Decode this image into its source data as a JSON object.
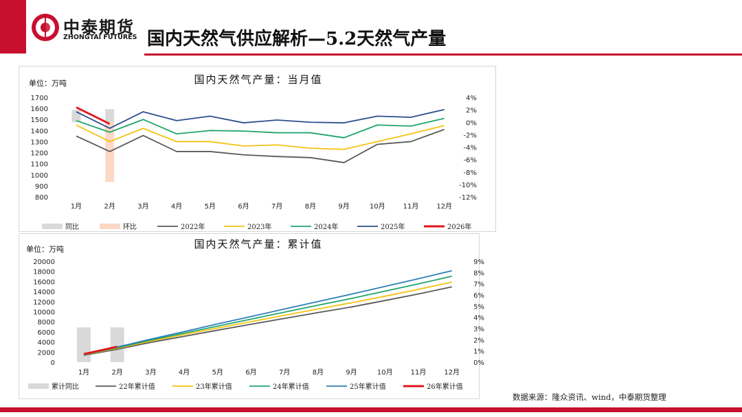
{
  "header": {
    "brand_cn": "中泰期货",
    "brand_en": "ZHONGTAI FUTURES",
    "title": "国内天然气供应解析—5.2天然气产量"
  },
  "colors": {
    "accent": "#c8102e"
  },
  "source": "数据来源：隆众资讯、wind，中泰期货整理",
  "chart_data": [
    {
      "type": "line",
      "title": "国内天然气产量：当月值",
      "ylabel": "单位：万吨",
      "categories": [
        "1月",
        "2月",
        "3月",
        "4月",
        "5月",
        "6月",
        "7月",
        "8月",
        "9月",
        "10月",
        "11月",
        "12月"
      ],
      "ylim": [
        800,
        1700
      ],
      "yticks": [
        "1700",
        "1600",
        "1500",
        "1400",
        "1300",
        "1200",
        "1100",
        "1000",
        "900",
        "800"
      ],
      "y2lim": [
        -12,
        4
      ],
      "y2ticks": [
        "4%",
        "2%",
        "0%",
        "-2%",
        "-4%",
        "-6%",
        "-8%",
        "-10%",
        "-12%"
      ],
      "bars": [
        {
          "name": "同比",
          "values": [
            2,
            2.1
          ],
          "color": "#d9d9d9"
        },
        {
          "name": "环比",
          "values": [
            null,
            -9.6
          ],
          "color": "#fbd9c6"
        }
      ],
      "series": [
        {
          "name": "2022年",
          "color": "#595959",
          "values": [
            1350,
            1210,
            1355,
            1210,
            1210,
            1180,
            1165,
            1155,
            1110,
            1275,
            1300,
            1410
          ]
        },
        {
          "name": "2023年",
          "color": "#f5c210",
          "values": [
            1450,
            1300,
            1420,
            1300,
            1300,
            1260,
            1270,
            1240,
            1230,
            1300,
            1370,
            1445
          ]
        },
        {
          "name": "2024年",
          "color": "#1fa56c",
          "values": [
            1490,
            1385,
            1500,
            1370,
            1400,
            1395,
            1380,
            1380,
            1335,
            1450,
            1440,
            1510
          ]
        },
        {
          "name": "2025年",
          "color": "#2c4d8c",
          "values": [
            1570,
            1420,
            1570,
            1490,
            1530,
            1470,
            1495,
            1475,
            1470,
            1530,
            1520,
            1590
          ]
        },
        {
          "name": "2026年",
          "color": "#e3141b",
          "values": [
            1610,
            1460,
            null,
            null,
            null,
            null,
            null,
            null,
            null,
            null,
            null,
            null
          ]
        }
      ]
    },
    {
      "type": "line",
      "title": "国内天然气产量：累计值",
      "ylabel": "单位：万吨",
      "categories": [
        "1月",
        "2月",
        "3月",
        "4月",
        "5月",
        "6月",
        "7月",
        "8月",
        "9月",
        "10月",
        "11月",
        "12月"
      ],
      "ylim": [
        0,
        20000
      ],
      "yticks": [
        "20000",
        "18000",
        "16000",
        "14000",
        "12000",
        "10000",
        "8000",
        "6000",
        "4000",
        "2000",
        "0"
      ],
      "y2lim": [
        0,
        9
      ],
      "y2ticks": [
        "9%",
        "8%",
        "7%",
        "6%",
        "5%",
        "4%",
        "3%",
        "2%",
        "1%",
        "0%"
      ],
      "bars": [
        {
          "name": "累计同比",
          "values": [
            3.1,
            3.1
          ],
          "color": "#d9d9d9"
        }
      ],
      "series": [
        {
          "name": "22年累计值",
          "color": "#595959",
          "values": [
            1350,
            2560,
            3915,
            5125,
            6335,
            7515,
            8680,
            9835,
            10945,
            12220,
            13520,
            14930
          ]
        },
        {
          "name": "23年累计值",
          "color": "#f5c210",
          "values": [
            1450,
            2750,
            4170,
            5470,
            6770,
            8030,
            9300,
            10540,
            11770,
            13070,
            14440,
            15885
          ]
        },
        {
          "name": "24年累计值",
          "color": "#1fa56c",
          "values": [
            1490,
            2875,
            4375,
            5745,
            7145,
            8540,
            9920,
            11300,
            12635,
            14085,
            15525,
            17035
          ]
        },
        {
          "name": "25年累计值",
          "color": "#2e7eb8",
          "values": [
            1570,
            2990,
            4560,
            6050,
            7580,
            9050,
            10545,
            12020,
            13490,
            15020,
            16540,
            18130
          ]
        },
        {
          "name": "26年累计值",
          "color": "#e3141b",
          "values": [
            1610,
            3070,
            null,
            null,
            null,
            null,
            null,
            null,
            null,
            null,
            null,
            null
          ]
        }
      ]
    }
  ]
}
